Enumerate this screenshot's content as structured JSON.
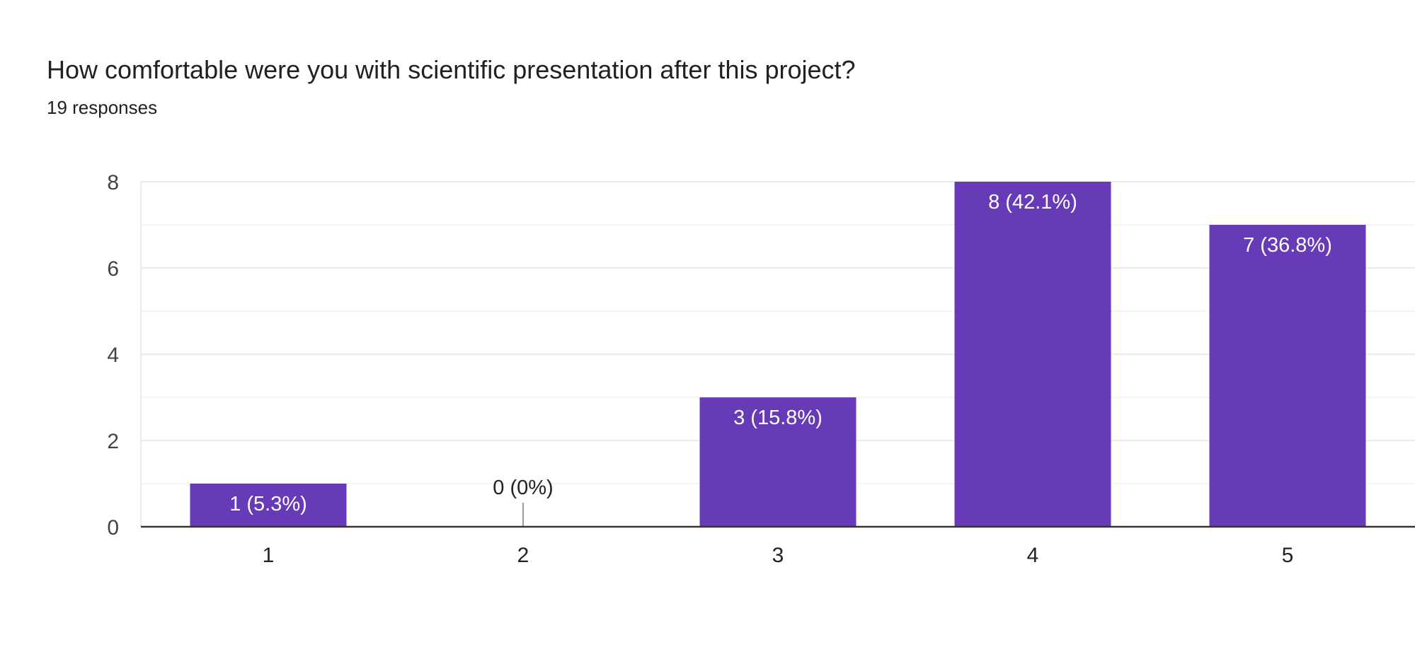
{
  "header": {
    "title": "How comfortable were you with scientific presentation after this project?",
    "subtitle": "19 responses"
  },
  "chart_data": {
    "type": "bar",
    "title": "How comfortable were you with scientific presentation after this project?",
    "subtitle": "19 responses",
    "categories": [
      "1",
      "2",
      "3",
      "4",
      "5"
    ],
    "values": [
      1,
      0,
      3,
      8,
      7
    ],
    "data_labels": [
      "1 (5.3%)",
      "0 (0%)",
      "3 (15.8%)",
      "8 (42.1%)",
      "7 (36.8%)"
    ],
    "yticks": [
      "0",
      "2",
      "4",
      "6",
      "8"
    ],
    "ylim": [
      0,
      8
    ],
    "xlabel": "",
    "ylabel": "",
    "grid": true,
    "bar_color": "#673ab7"
  }
}
